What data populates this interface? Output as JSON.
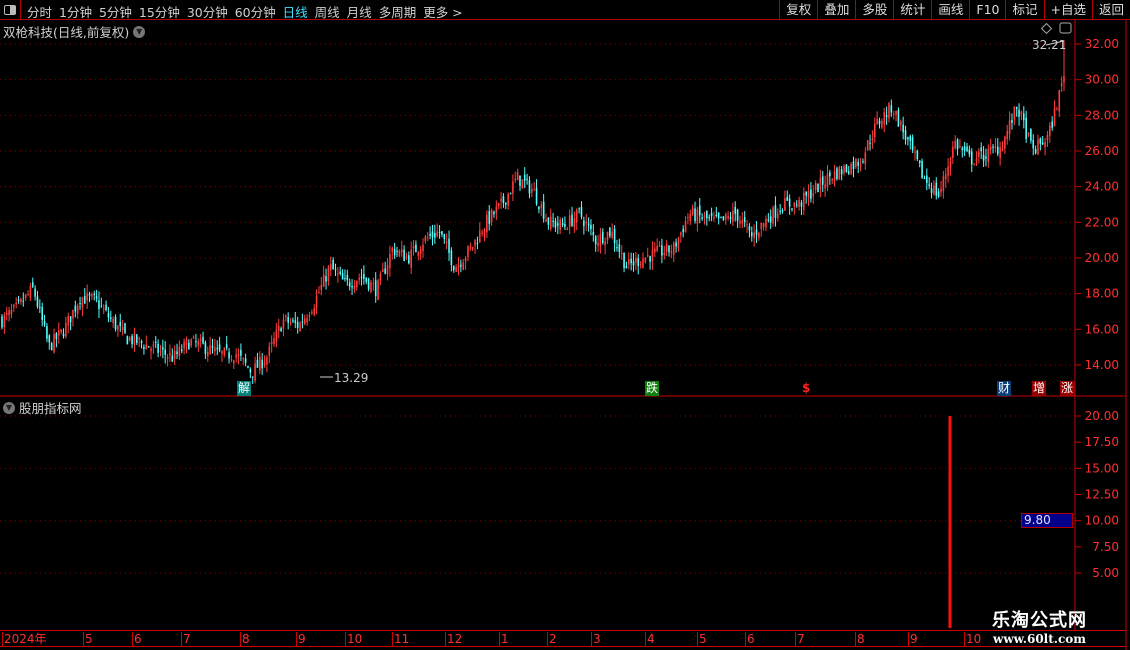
{
  "toolbar": {
    "periods": [
      "分时",
      "1分钟",
      "5分钟",
      "15分钟",
      "30分钟",
      "60分钟",
      "日线",
      "周线",
      "月线",
      "多周期",
      "更多 >"
    ],
    "active_period": "日线",
    "buttons": [
      "复权",
      "叠加",
      "多股",
      "统计",
      "画线",
      "F10",
      "标记",
      "+自选",
      "返回"
    ]
  },
  "main_panel": {
    "title": "双枪科技(日线,前复权)",
    "high_label": "32.21",
    "low_label": "13.29",
    "price_ticks": [
      "32.00",
      "30.00",
      "28.00",
      "26.00",
      "24.00",
      "22.00",
      "20.00",
      "18.00",
      "16.00",
      "14.00"
    ],
    "markers": [
      {
        "text": "解",
        "color": "#00807a"
      },
      {
        "text": "跌",
        "color": "#108010"
      },
      {
        "text": "$",
        "color": "#ff2020"
      },
      {
        "text": "财",
        "color": "#0a3c78"
      },
      {
        "text": "增",
        "color": "#9a0000"
      },
      {
        "text": "涨",
        "color": "#9a0000"
      }
    ]
  },
  "indicator_panel": {
    "title": "股朋指标网",
    "ticks": [
      "20.00",
      "17.50",
      "15.00",
      "12.50",
      "10.00",
      "7.50",
      "5.00"
    ],
    "current_value": "9.80"
  },
  "x_axis": [
    "2024年",
    "5",
    "6",
    "7",
    "8",
    "9",
    "10",
    "11",
    "12",
    "1",
    "2",
    "3",
    "4",
    "5",
    "6",
    "7",
    "8",
    "9",
    "10"
  ],
  "watermark": {
    "name": "乐淘公式网",
    "url": "www.60lt.com"
  },
  "colors": {
    "up": "#ff3c3c",
    "down": "#54ffff",
    "axis": "#c00000",
    "active": "#3fe0ff"
  },
  "chart": {
    "type": "candlestick",
    "price_range": [
      13,
      33
    ],
    "approx_close_path": [
      16.5,
      17.2,
      18.3,
      15.0,
      16.0,
      17.8,
      17.6,
      16.5,
      15.5,
      15.2,
      14.8,
      14.4,
      15.3,
      15.0,
      14.6,
      14.6,
      13.6,
      14.5,
      16.5,
      16.2,
      17.5,
      19.5,
      18.5,
      19.0,
      18.2,
      20.5,
      20.0,
      21.0,
      21.5,
      19.5,
      20.5,
      22.0,
      23.0,
      24.5,
      23.8,
      22.0,
      21.8,
      22.5,
      21.0,
      21.5,
      19.5,
      20.0,
      20.3,
      20.5,
      22.5,
      22.2,
      22.0,
      22.5,
      21.2,
      22.2,
      23.0,
      23.0,
      23.8,
      24.6,
      25.0,
      25.5,
      27.5,
      28.5,
      26.5,
      24.5,
      23.5,
      26.5,
      25.5,
      25.8,
      26.3,
      28.5,
      26.0,
      26.8,
      30.2
    ],
    "indicator_spike": 20
  }
}
